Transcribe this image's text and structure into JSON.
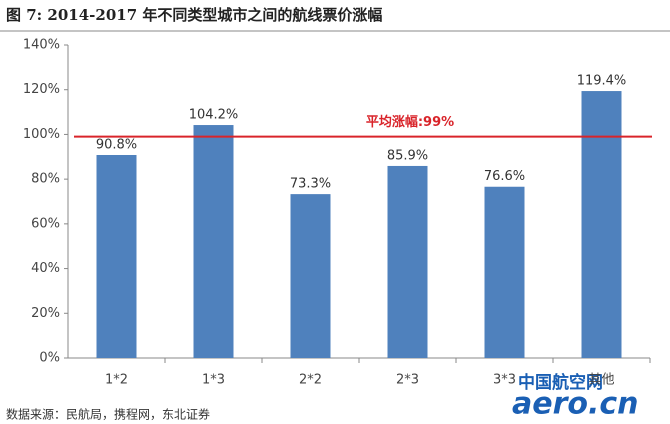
{
  "chart_data": {
    "type": "bar",
    "title": "图 7: 2014-2017 年不同类型城市之间的航线票价涨幅",
    "categories": [
      "1*2",
      "1*3",
      "2*2",
      "2*3",
      "3*3",
      "其他"
    ],
    "values": [
      90.8,
      104.2,
      73.3,
      85.9,
      76.6,
      119.4
    ],
    "value_labels": [
      "90.8%",
      "104.2%",
      "73.3%",
      "85.9%",
      "76.6%",
      "119.4%"
    ],
    "color": "#4f81bd",
    "ylim": [
      0,
      140
    ],
    "yticks": [
      {
        "value": 0,
        "label": "0%"
      },
      {
        "value": 20,
        "label": "20%"
      },
      {
        "value": 40,
        "label": "40%"
      },
      {
        "value": 60,
        "label": "60%"
      },
      {
        "value": 80,
        "label": "80%"
      },
      {
        "value": 100,
        "label": "100%"
      },
      {
        "value": 120,
        "label": "120%"
      },
      {
        "value": 140,
        "label": "140%"
      }
    ],
    "average": {
      "value": 99,
      "label": "平均涨幅:99%",
      "color": "#d9242a"
    },
    "source": "数据来源：民航局，携程网，东北证券",
    "watermark": [
      "中国航空网",
      "aero.cn"
    ]
  }
}
